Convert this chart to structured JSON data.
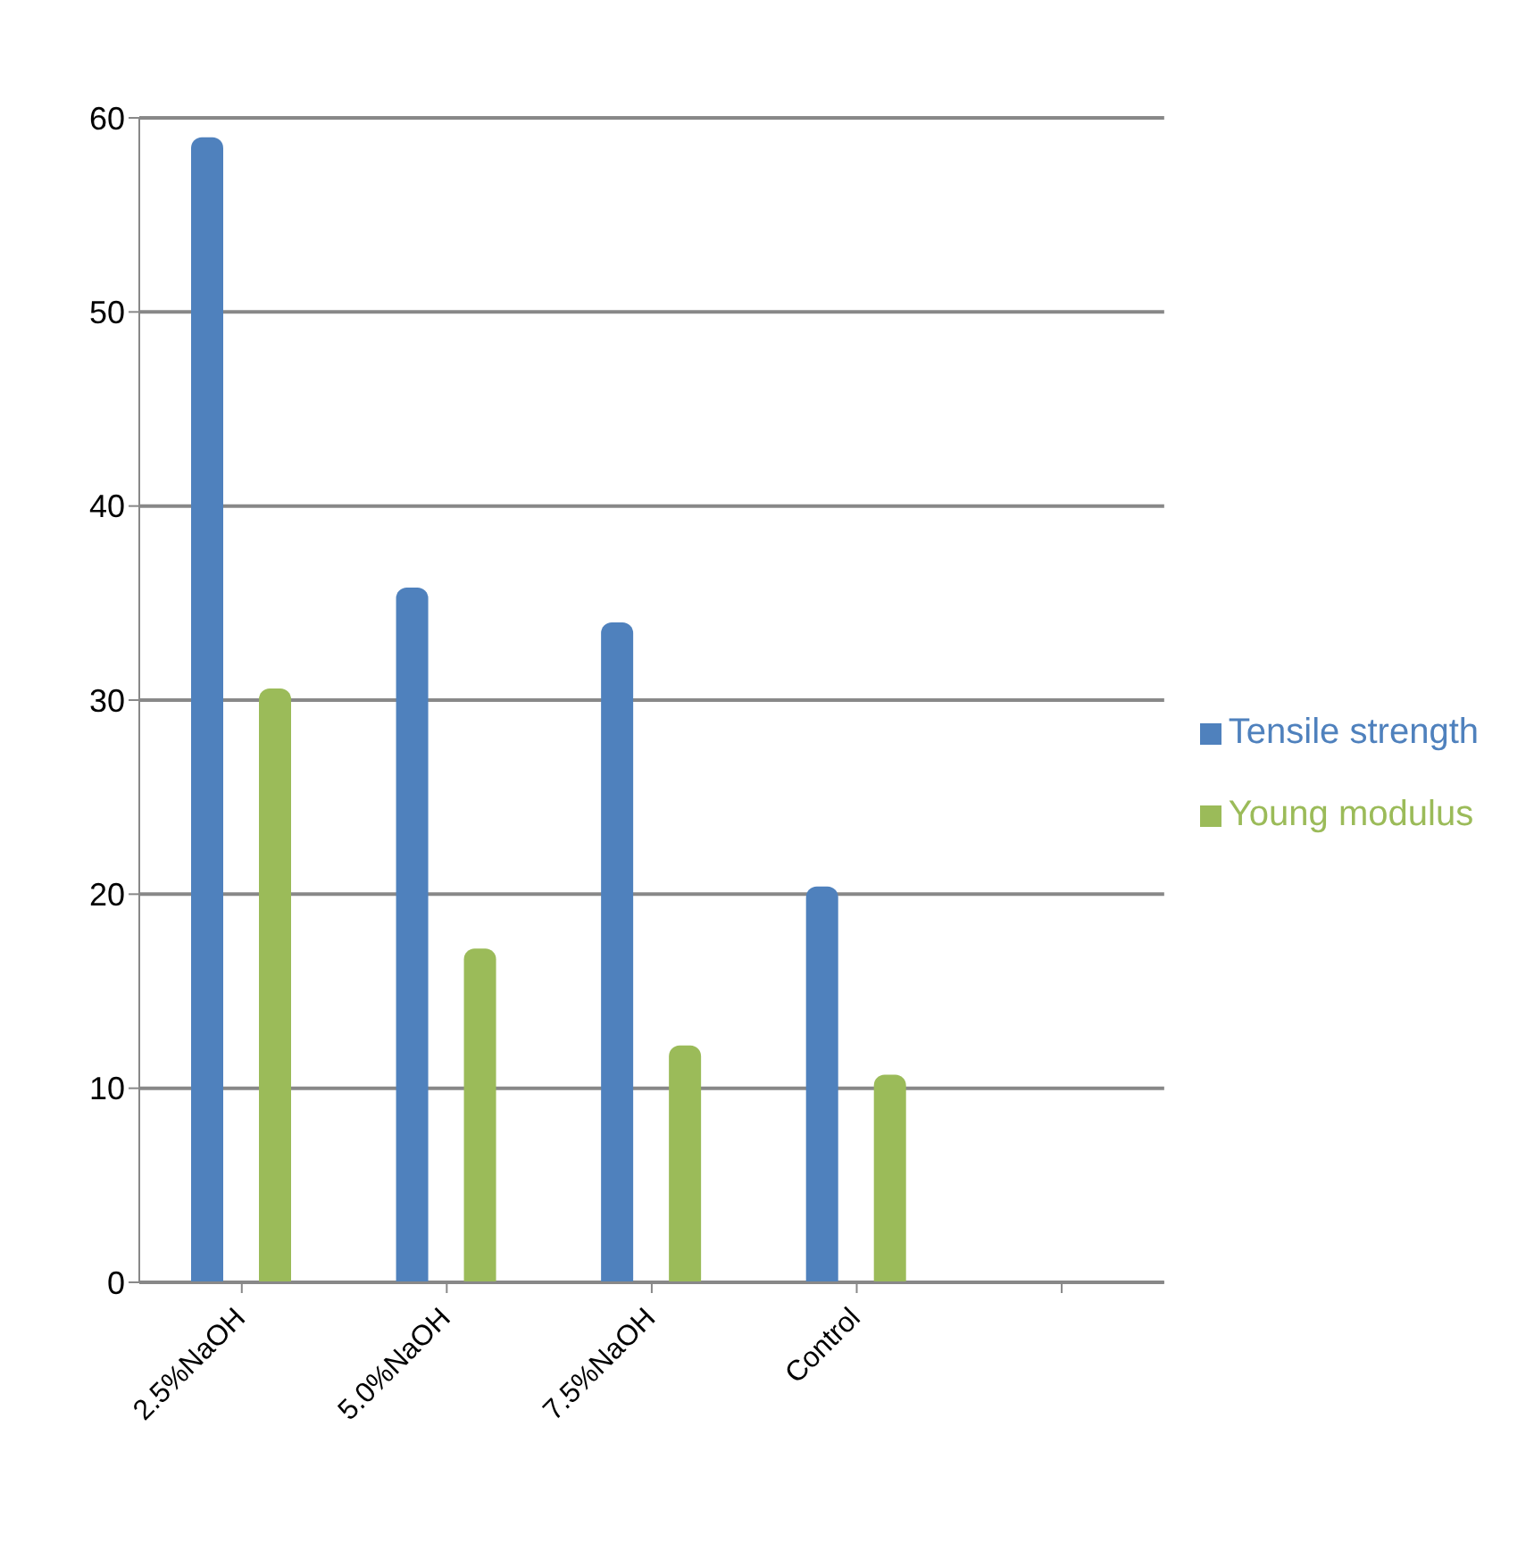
{
  "chart_data": {
    "type": "bar",
    "categories": [
      "2.5%NaOH",
      "5.0%NaOH",
      "7.5%NaOH",
      "Control",
      null
    ],
    "series": [
      {
        "name": "Tensile strength",
        "color": "#4f81bd",
        "values": [
          59,
          35.8,
          34,
          20.4,
          null
        ]
      },
      {
        "name": "Young modulus",
        "color": "#9bbb59",
        "values": [
          30.6,
          17.2,
          12.2,
          10.7,
          null
        ]
      }
    ],
    "ylim": [
      0,
      60
    ],
    "yticks": [
      0,
      10,
      20,
      30,
      40,
      50,
      60
    ],
    "grid": "y",
    "legend": "right"
  }
}
